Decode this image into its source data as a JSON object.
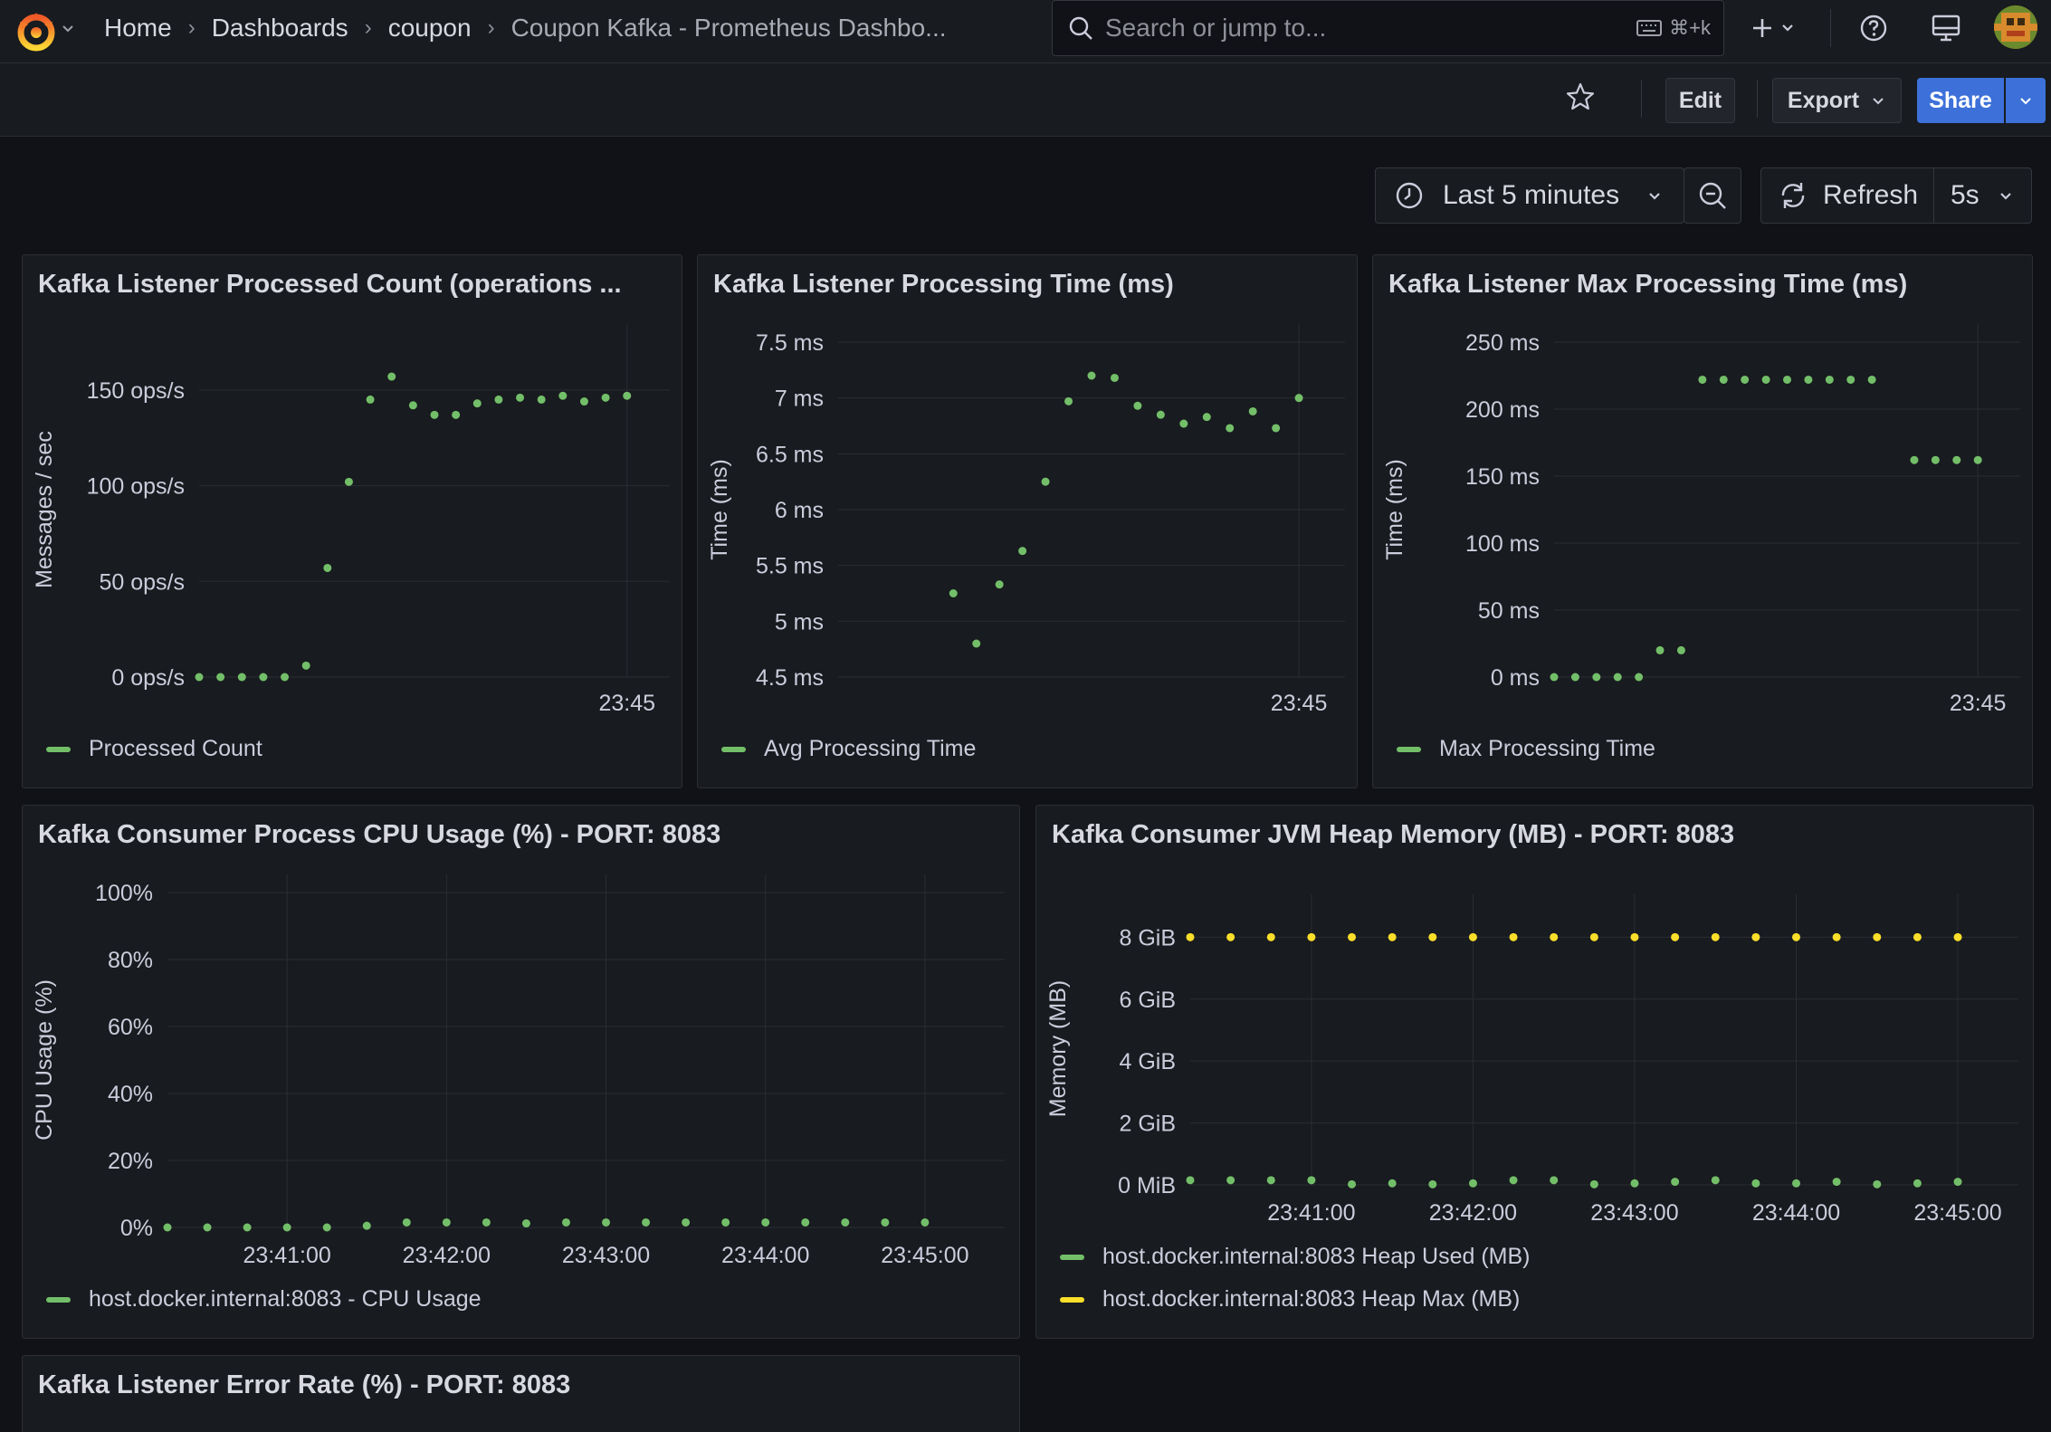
{
  "topbar": {
    "breadcrumbs": [
      {
        "label": "Home"
      },
      {
        "label": "Dashboards"
      },
      {
        "label": "coupon"
      },
      {
        "label": "Coupon Kafka - Prometheus Dashbo..."
      }
    ],
    "search_placeholder": "Search or jump to...",
    "search_shortcut": "⌘+k",
    "icons": [
      "grafana-logo-icon",
      "plus-icon",
      "help-icon",
      "kiosk-icon"
    ]
  },
  "toolbar": {
    "edit_label": "Edit",
    "export_label": "Export",
    "share_label": "Share"
  },
  "time_controls": {
    "range_label": "Last 5 minutes",
    "refresh_label": "Refresh",
    "refresh_interval": "5s"
  },
  "colors": {
    "green": "#73bf69",
    "yellow": "#fade2a",
    "accent": "#3d71d9",
    "panel_bg": "#181b1f",
    "page_bg": "#111217"
  },
  "panels": [
    {
      "title": "Kafka Listener Processed Count (operations ...",
      "legend": [
        {
          "label": "Processed Count",
          "color": "#73bf69"
        }
      ]
    },
    {
      "title": "Kafka Listener Processing Time (ms)",
      "legend": [
        {
          "label": "Avg Processing Time",
          "color": "#73bf69"
        }
      ]
    },
    {
      "title": "Kafka Listener Max Processing Time (ms)",
      "legend": [
        {
          "label": "Max Processing Time",
          "color": "#73bf69"
        }
      ]
    },
    {
      "title": "Kafka Consumer Process CPU Usage (%) - PORT: 8083",
      "legend": [
        {
          "label": "host.docker.internal:8083 - CPU Usage",
          "color": "#73bf69"
        }
      ]
    },
    {
      "title": "Kafka Consumer JVM Heap Memory (MB) - PORT: 8083",
      "legend": [
        {
          "label": "host.docker.internal:8083 Heap Used (MB)",
          "color": "#73bf69"
        },
        {
          "label": "host.docker.internal:8083 Heap Max (MB)",
          "color": "#fade2a"
        }
      ]
    },
    {
      "title": "Kafka Listener Error Rate (%) - PORT: 8083",
      "legend": []
    }
  ],
  "chart_data": [
    {
      "type": "scatter",
      "title": "Kafka Listener Processed Count (operations ...",
      "ylabel": "Messages / sec",
      "ylim": [
        0,
        175
      ],
      "yticks": [
        0,
        50,
        100,
        150
      ],
      "ytick_labels": [
        "0 ops/s",
        "50 ops/s",
        "100 ops/s",
        "150 ops/s"
      ],
      "xlim": [
        0,
        22
      ],
      "xticks": [
        20
      ],
      "xtick_labels": [
        "23:45"
      ],
      "grid": true,
      "legend_position": "bottom-left",
      "series": [
        {
          "name": "Processed Count",
          "color": "#73bf69",
          "x": [
            0,
            1,
            2,
            3,
            4,
            5,
            6,
            7,
            8,
            9,
            10,
            11,
            12,
            13,
            14,
            15,
            16,
            17,
            18,
            19,
            20
          ],
          "y": [
            0,
            0,
            0,
            0,
            0,
            6,
            57,
            102,
            145,
            157,
            142,
            137,
            137,
            143,
            145,
            146,
            145,
            147,
            144,
            146,
            147
          ]
        }
      ]
    },
    {
      "type": "scatter",
      "title": "Kafka Listener Processing Time (ms)",
      "ylabel": "Time (ms)",
      "ylim": [
        4.5,
        7.5
      ],
      "yticks": [
        4.5,
        5,
        5.5,
        6,
        6.5,
        7,
        7.5
      ],
      "ytick_labels": [
        "4.5 ms",
        "5 ms",
        "5.5 ms",
        "6 ms",
        "6.5 ms",
        "7 ms",
        "7.5 ms"
      ],
      "xlim": [
        0,
        22
      ],
      "xticks": [
        20
      ],
      "xtick_labels": [
        "23:45"
      ],
      "grid": true,
      "legend_position": "bottom-left",
      "series": [
        {
          "name": "Avg Processing Time",
          "color": "#73bf69",
          "x": [
            5,
            6,
            7,
            8,
            9,
            10,
            11,
            12,
            13,
            14,
            15,
            16,
            17,
            18,
            19,
            20
          ],
          "y": [
            5.25,
            4.8,
            5.33,
            5.63,
            6.25,
            6.97,
            7.2,
            7.18,
            6.93,
            6.85,
            6.77,
            6.83,
            6.73,
            6.88,
            6.73,
            7.0
          ]
        }
      ]
    },
    {
      "type": "scatter",
      "title": "Kafka Listener Max Processing Time (ms)",
      "ylabel": "Time (ms)",
      "ylim": [
        0,
        250
      ],
      "yticks": [
        0,
        50,
        100,
        150,
        200,
        250
      ],
      "ytick_labels": [
        "0 ms",
        "50 ms",
        "100 ms",
        "150 ms",
        "200 ms",
        "250 ms"
      ],
      "xlim": [
        0,
        22
      ],
      "xticks": [
        20
      ],
      "xtick_labels": [
        "23:45"
      ],
      "grid": true,
      "legend_position": "bottom-left",
      "series": [
        {
          "name": "Max Processing Time",
          "color": "#73bf69",
          "x": [
            0,
            1,
            2,
            3,
            4,
            5,
            6,
            7,
            8,
            9,
            10,
            11,
            12,
            13,
            14,
            15,
            16,
            17,
            18,
            19,
            20
          ],
          "y": [
            0,
            0,
            0,
            0,
            0,
            20,
            20,
            222,
            222,
            222,
            222,
            222,
            222,
            222,
            222,
            222,
            null,
            162,
            162,
            162,
            162
          ]
        }
      ]
    },
    {
      "type": "scatter",
      "title": "Kafka Consumer Process CPU Usage (%) - PORT: 8083",
      "ylabel": "CPU Usage (%)",
      "ylim": [
        0,
        100
      ],
      "yticks": [
        0,
        20,
        40,
        60,
        80,
        100
      ],
      "ytick_labels": [
        "0%",
        "20%",
        "40%",
        "60%",
        "80%",
        "100%"
      ],
      "xlim": [
        0,
        21
      ],
      "xticks": [
        3,
        7,
        11,
        15,
        19
      ],
      "xtick_labels": [
        "23:41:00",
        "23:42:00",
        "23:43:00",
        "23:44:00",
        "23:45:00"
      ],
      "grid": true,
      "legend_position": "bottom-left",
      "series": [
        {
          "name": "host.docker.internal:8083 - CPU Usage",
          "color": "#73bf69",
          "x": [
            0,
            1,
            2,
            3,
            4,
            5,
            6,
            7,
            8,
            9,
            10,
            11,
            12,
            13,
            14,
            15,
            16,
            17,
            18,
            19
          ],
          "y": [
            0,
            0,
            0,
            0,
            0,
            0.5,
            1.5,
            1.5,
            1.5,
            1.2,
            1.5,
            1.5,
            1.5,
            1.5,
            1.5,
            1.5,
            1.5,
            1.5,
            1.5,
            1.5
          ]
        }
      ]
    },
    {
      "type": "scatter",
      "title": "Kafka Consumer JVM Heap Memory (MB) - PORT: 8083",
      "ylabel": "Memory (MB)",
      "ylim": [
        0,
        8.8
      ],
      "yticks": [
        0,
        2,
        4,
        6,
        8
      ],
      "ytick_labels": [
        "0 MiB",
        "2 GiB",
        "4 GiB",
        "6 GiB",
        "8 GiB"
      ],
      "xlim": [
        0,
        20.5
      ],
      "xticks": [
        3,
        7,
        11,
        15,
        19
      ],
      "xtick_labels": [
        "23:41:00",
        "23:42:00",
        "23:43:00",
        "23:44:00",
        "23:45:00"
      ],
      "grid": true,
      "legend_position": "bottom-left",
      "series": [
        {
          "name": "host.docker.internal:8083 Heap Used (MB)",
          "color": "#73bf69",
          "x": [
            0,
            1,
            2,
            3,
            4,
            5,
            6,
            7,
            8,
            9,
            10,
            11,
            12,
            13,
            14,
            15,
            16,
            17,
            18,
            19
          ],
          "y": [
            0.15,
            0.15,
            0.15,
            0.15,
            0.02,
            0.05,
            0.02,
            0.05,
            0.15,
            0.15,
            0.02,
            0.05,
            0.1,
            0.15,
            0.05,
            0.05,
            0.1,
            0.02,
            0.05,
            0.1
          ]
        },
        {
          "name": "host.docker.internal:8083 Heap Max (MB)",
          "color": "#fade2a",
          "x": [
            0,
            1,
            2,
            3,
            4,
            5,
            6,
            7,
            8,
            9,
            10,
            11,
            12,
            13,
            14,
            15,
            16,
            17,
            18,
            19
          ],
          "y": [
            8,
            8,
            8,
            8,
            8,
            8,
            8,
            8,
            8,
            8,
            8,
            8,
            8,
            8,
            8,
            8,
            8,
            8,
            8,
            8
          ]
        }
      ]
    }
  ]
}
